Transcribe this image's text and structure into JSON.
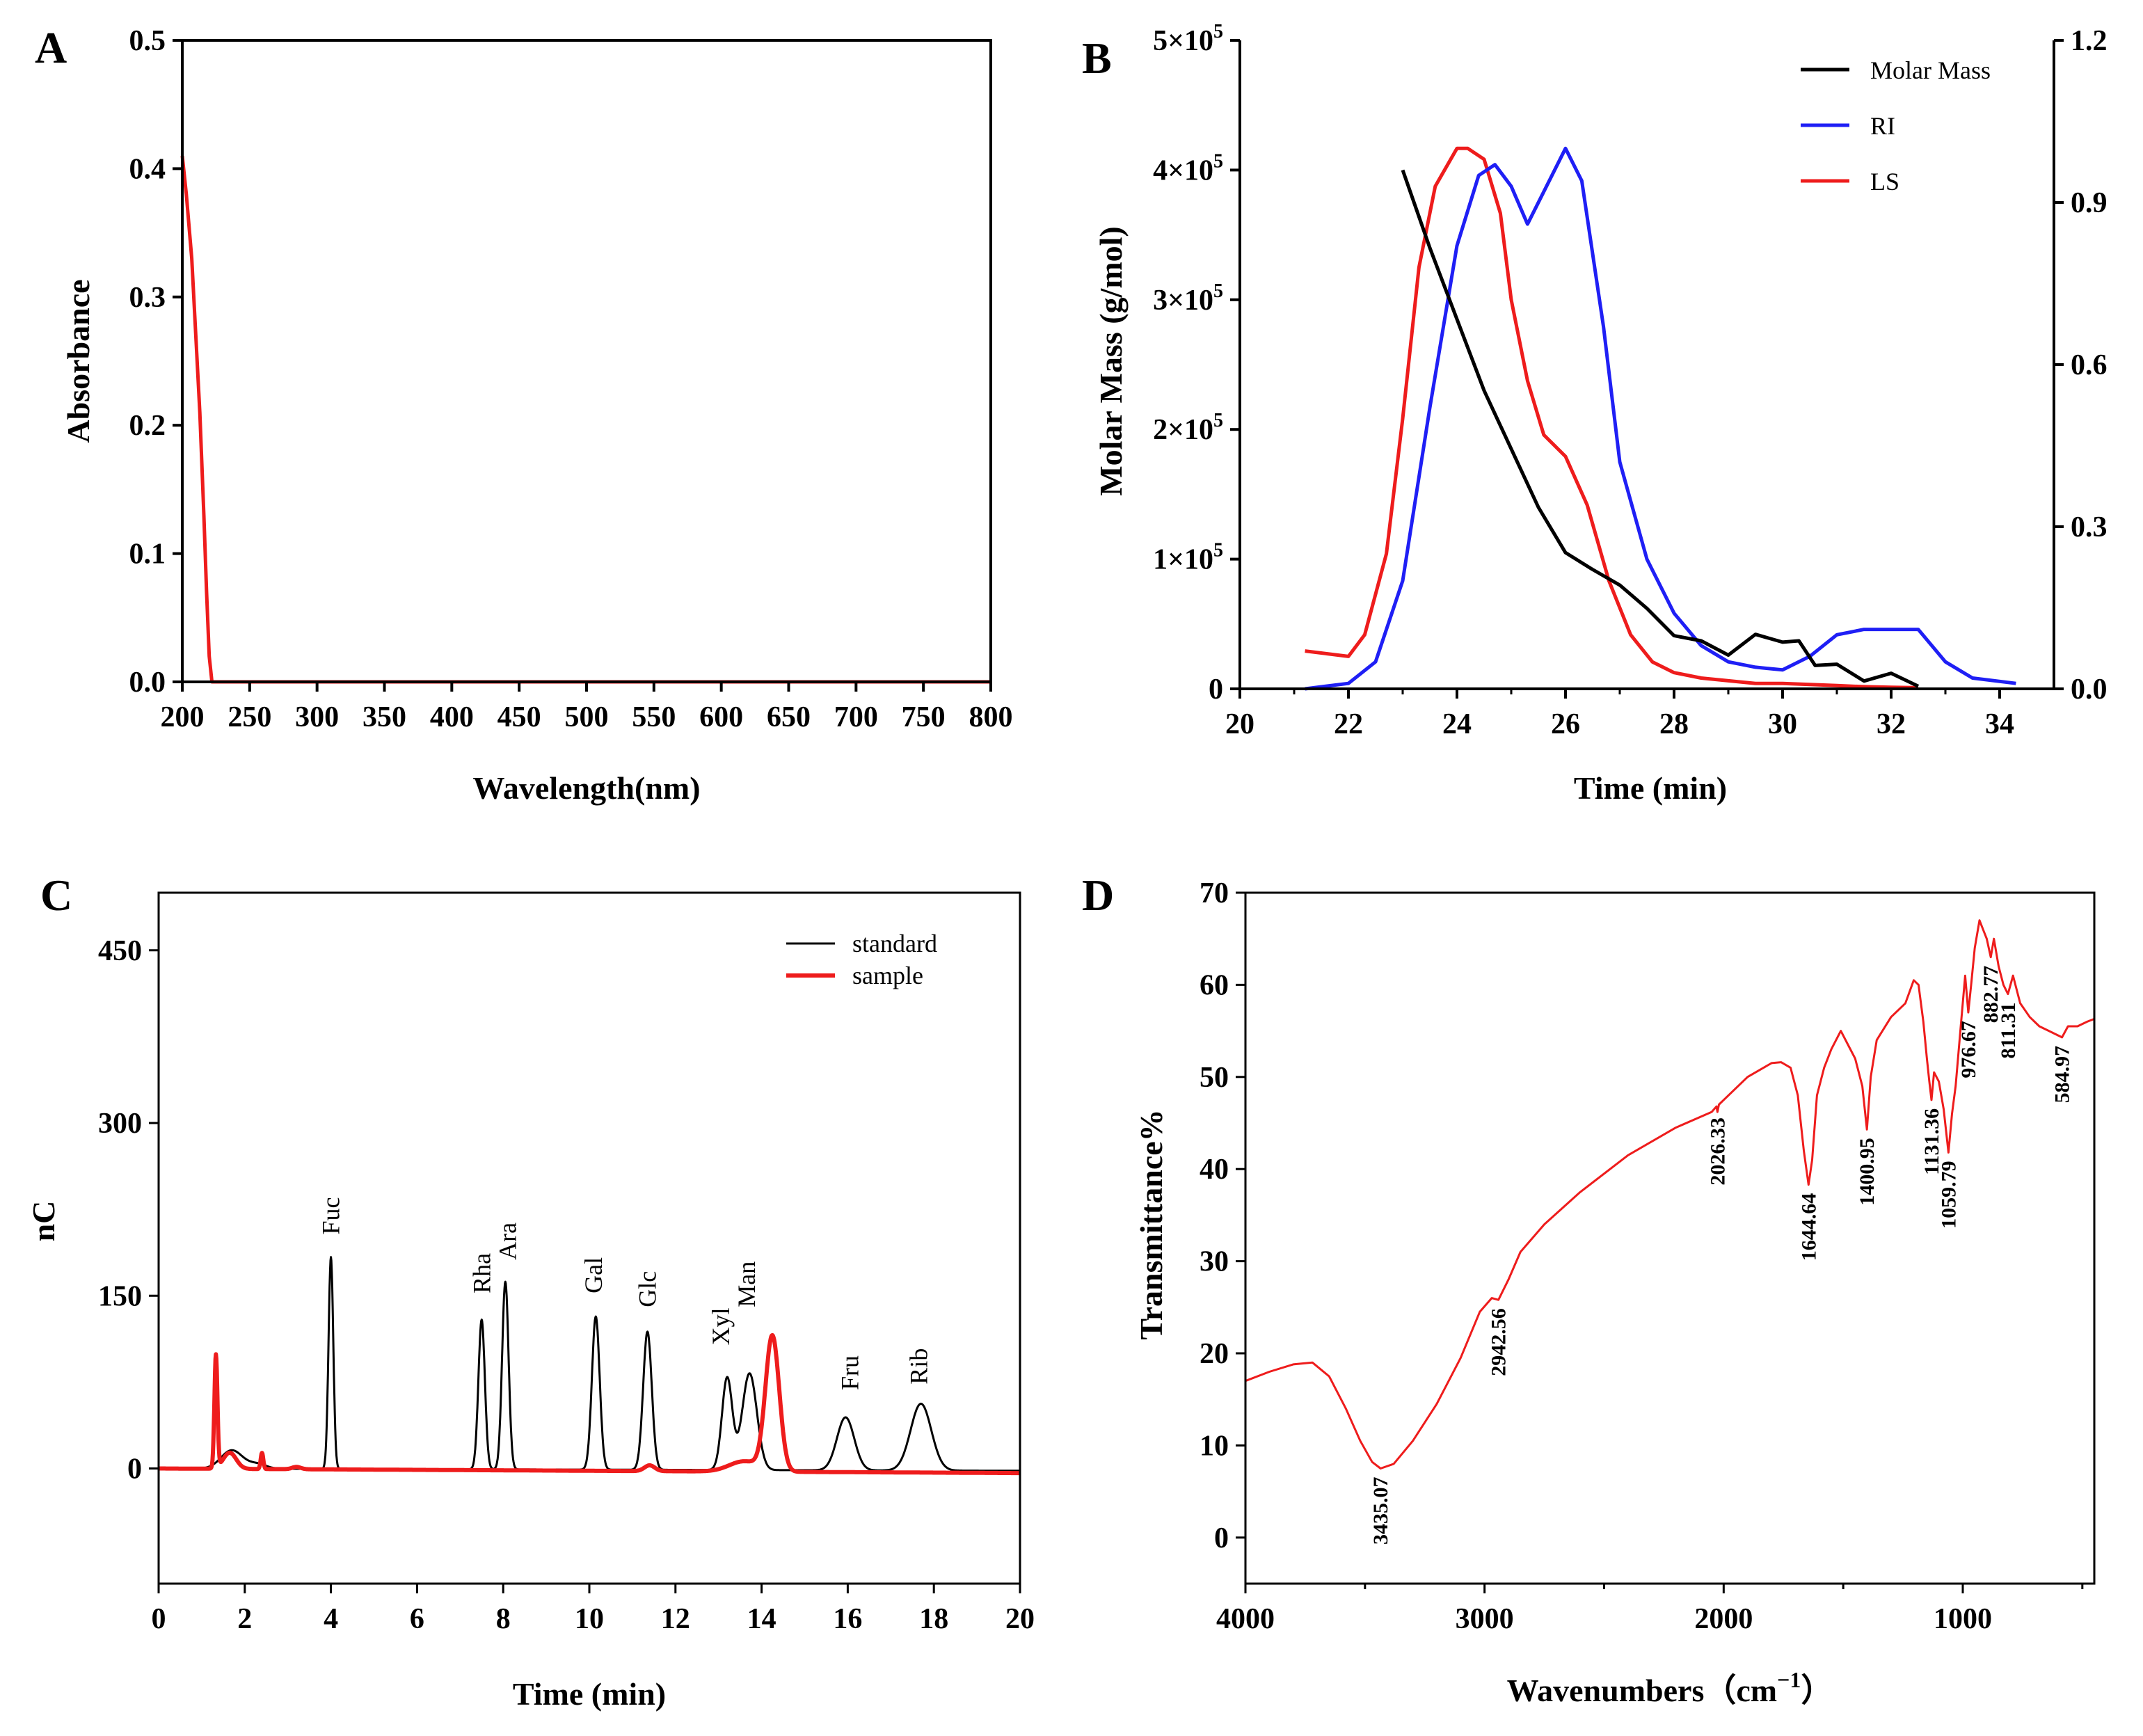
{
  "figure": {
    "colors": {
      "black": "#000000",
      "red": "#ee1c1c",
      "blue": "#1f1ff5"
    }
  },
  "chart_data": [
    {
      "panel": "A",
      "type": "line",
      "xlabel": "Wavelength(nm)",
      "ylabel": "Absorbance",
      "xlim": [
        200,
        800
      ],
      "ylim": [
        0.0,
        0.5
      ],
      "xticks": [
        "200",
        "250",
        "300",
        "350",
        "400",
        "450",
        "500",
        "550",
        "600",
        "650",
        "700",
        "750",
        "800"
      ],
      "yticks": [
        "0.0",
        "0.1",
        "0.2",
        "0.3",
        "0.4",
        "0.5"
      ],
      "series": [
        {
          "name": "absorbance",
          "color": "#ee1c1c",
          "x": [
            200,
            203,
            207,
            210,
            213,
            216,
            218,
            220,
            222,
            225,
            250,
            300,
            400,
            500,
            600,
            700,
            800
          ],
          "y": [
            0.41,
            0.38,
            0.33,
            0.27,
            0.21,
            0.13,
            0.07,
            0.02,
            0.0,
            0.0,
            0.0,
            0.0,
            0.0,
            0.0,
            0.0,
            0.0,
            0.0
          ]
        }
      ]
    },
    {
      "panel": "B",
      "type": "line",
      "xlabel": "Time (min)",
      "ylabel": "Molar Mass (g/mol)",
      "xlim": [
        20,
        35
      ],
      "ylim": [
        0,
        500000
      ],
      "y2lim": [
        0,
        1.2
      ],
      "xticks": [
        "20",
        "22",
        "24",
        "26",
        "28",
        "30",
        "32",
        "34"
      ],
      "yticks": [
        {
          "base": "0",
          "exp": ""
        },
        {
          "base": "1×10",
          "exp": "5"
        },
        {
          "base": "2×10",
          "exp": "5"
        },
        {
          "base": "3×10",
          "exp": "5"
        },
        {
          "base": "4×10",
          "exp": "5"
        },
        {
          "base": "5×10",
          "exp": "5"
        }
      ],
      "y2ticks": [
        "0.0",
        "0.3",
        "0.6",
        "0.9",
        "1.2"
      ],
      "legend": [
        "Molar Mass",
        "RI",
        "LS"
      ],
      "series": [
        {
          "name": "Molar Mass",
          "axis": "left",
          "color": "#000000",
          "x": [
            23.0,
            23.5,
            24.0,
            24.5,
            25.0,
            25.5,
            26.0,
            26.5,
            27.0,
            27.5,
            28.0,
            28.5,
            29.0,
            29.5,
            30.0,
            30.3,
            30.6,
            31.0,
            31.5,
            32.0,
            32.5
          ],
          "y": [
            400000,
            340000,
            285000,
            230000,
            185000,
            140000,
            105000,
            92000,
            80000,
            62000,
            45000,
            33000,
            30000,
            38000,
            40000,
            33000,
            22000,
            15000,
            10000,
            8000,
            6000
          ]
        },
        {
          "name": "RI",
          "axis": "right",
          "color": "#1f1ff5",
          "x": [
            21.2,
            22.0,
            22.5,
            23.0,
            23.5,
            24.0,
            24.4,
            24.7,
            25.0,
            25.3,
            25.6,
            26.0,
            26.3,
            26.7,
            27.0,
            27.5,
            28.0,
            28.5,
            29.0,
            29.5,
            30.0,
            30.5,
            31.0,
            31.5,
            32.0,
            32.5,
            33.0,
            33.5,
            34.3
          ],
          "y": [
            0.0,
            0.01,
            0.05,
            0.2,
            0.52,
            0.82,
            0.95,
            0.97,
            0.93,
            0.86,
            0.92,
            1.0,
            0.94,
            0.67,
            0.42,
            0.24,
            0.14,
            0.08,
            0.05,
            0.04,
            0.035,
            0.06,
            0.1,
            0.11,
            0.11,
            0.11,
            0.05,
            0.02,
            0.01
          ]
        },
        {
          "name": "LS",
          "axis": "right",
          "color": "#ee1c1c",
          "x": [
            21.2,
            21.6,
            22.0,
            22.3,
            22.7,
            23.0,
            23.3,
            23.6,
            24.0,
            24.2,
            24.5,
            24.8,
            25.0,
            25.3,
            25.6,
            26.0,
            26.4,
            26.8,
            27.2,
            27.6,
            28.0,
            28.5,
            29.0,
            29.5,
            30.0,
            30.5,
            31.0,
            31.5,
            32.0,
            32.5
          ],
          "y": [
            0.07,
            0.065,
            0.06,
            0.1,
            0.25,
            0.5,
            0.78,
            0.93,
            1.0,
            1.0,
            0.98,
            0.88,
            0.72,
            0.57,
            0.47,
            0.43,
            0.34,
            0.2,
            0.1,
            0.05,
            0.03,
            0.02,
            0.015,
            0.01,
            0.01,
            0.008,
            0.006,
            0.004,
            0.003,
            0.002
          ]
        }
      ]
    },
    {
      "panel": "C",
      "type": "line",
      "xlabel": "Time (min)",
      "ylabel": "nC",
      "xlim": [
        0,
        20
      ],
      "ylim": [
        -100,
        500
      ],
      "xticks": [
        "0",
        "2",
        "4",
        "6",
        "8",
        "10",
        "12",
        "14",
        "16",
        "18",
        "20"
      ],
      "yticks": [
        "0",
        "150",
        "300",
        "450"
      ],
      "legend": [
        "standard",
        "sample"
      ],
      "peak_labels": [
        {
          "label": "Fuc",
          "x": 4.0,
          "y": 203
        },
        {
          "label": "Rha",
          "x": 7.5,
          "y": 152
        },
        {
          "label": "Ara",
          "x": 8.1,
          "y": 181
        },
        {
          "label": "Gal",
          "x": 10.1,
          "y": 152
        },
        {
          "label": "Glc",
          "x": 11.35,
          "y": 140
        },
        {
          "label": "Xyl",
          "x": 13.05,
          "y": 107
        },
        {
          "label": "Man",
          "x": 13.65,
          "y": 140
        },
        {
          "label": "Fru",
          "x": 16.05,
          "y": 68
        },
        {
          "label": "Rib",
          "x": 17.65,
          "y": 73
        }
      ],
      "series": [
        {
          "name": "standard",
          "color": "#000000",
          "peaks": [
            {
              "c": 1.7,
              "h": 16,
              "w": 0.25
            },
            {
              "c": 2.3,
              "h": 4,
              "w": 0.2
            },
            {
              "c": 4.0,
              "h": 184,
              "w": 0.055
            },
            {
              "c": 7.5,
              "h": 130,
              "w": 0.075
            },
            {
              "c": 8.05,
              "h": 163,
              "w": 0.075
            },
            {
              "c": 10.15,
              "h": 133,
              "w": 0.09
            },
            {
              "c": 11.35,
              "h": 120,
              "w": 0.1
            },
            {
              "c": 13.2,
              "h": 80,
              "w": 0.12
            },
            {
              "c": 13.72,
              "h": 84,
              "w": 0.17
            },
            {
              "c": 15.95,
              "h": 46,
              "w": 0.2
            },
            {
              "c": 17.7,
              "h": 58,
              "w": 0.24
            }
          ],
          "baseline_start": 0,
          "baseline_end": -2
        },
        {
          "name": "sample",
          "color": "#ee1c1c",
          "peaks": [
            {
              "c": 1.33,
              "h": 98,
              "w": 0.035
            },
            {
              "c": 1.65,
              "h": 14,
              "w": 0.15
            },
            {
              "c": 2.4,
              "h": 14,
              "w": 0.03
            },
            {
              "c": 3.2,
              "h": 2,
              "w": 0.1
            },
            {
              "c": 11.4,
              "h": 5,
              "w": 0.12
            },
            {
              "c": 13.6,
              "h": 9,
              "w": 0.35
            },
            {
              "c": 14.25,
              "h": 117,
              "w": 0.16
            }
          ],
          "baseline_start": 0,
          "baseline_end": -4
        }
      ]
    },
    {
      "panel": "D",
      "type": "line",
      "xlabel": "Wavenumbers（cm",
      "xlabel_sup": "−1",
      "xlabel_close": "）",
      "ylabel": "Transmittance%",
      "xlim": [
        4000,
        450
      ],
      "ylim": [
        -5,
        70
      ],
      "xticks": [
        "4000",
        "3000",
        "2000",
        "1000"
      ],
      "yticks": [
        "0",
        "10",
        "20",
        "30",
        "40",
        "50",
        "60",
        "70"
      ],
      "peak_labels": [
        {
          "label": "3435.07",
          "x": 3435,
          "y": 7.5
        },
        {
          "label": "2942.56",
          "x": 2942,
          "y": 25.8
        },
        {
          "label": "2026.33",
          "x": 2026,
          "y": 46.5
        },
        {
          "label": "1644.64",
          "x": 1645,
          "y": 38.3
        },
        {
          "label": "1400.95",
          "x": 1401,
          "y": 44.3
        },
        {
          "label": "1131.36",
          "x": 1131,
          "y": 47.5
        },
        {
          "label": "1059.79",
          "x": 1060,
          "y": 41.8
        },
        {
          "label": "976.67",
          "x": 977,
          "y": 57
        },
        {
          "label": "882.77",
          "x": 883,
          "y": 63
        },
        {
          "label": "811.31",
          "x": 811,
          "y": 59
        },
        {
          "label": "584.97",
          "x": 585,
          "y": 54.3
        }
      ],
      "series": [
        {
          "name": "spectrum",
          "color": "#ee1c1c",
          "x": [
            4000,
            3900,
            3800,
            3720,
            3650,
            3580,
            3520,
            3470,
            3435,
            3380,
            3300,
            3200,
            3100,
            3020,
            2970,
            2942,
            2900,
            2850,
            2750,
            2600,
            2400,
            2200,
            2050,
            2030,
            2026,
            2020,
            2000,
            1900,
            1800,
            1760,
            1720,
            1690,
            1665,
            1645,
            1630,
            1610,
            1580,
            1550,
            1510,
            1480,
            1450,
            1420,
            1401,
            1385,
            1360,
            1300,
            1240,
            1205,
            1185,
            1165,
            1150,
            1140,
            1131,
            1120,
            1100,
            1080,
            1060,
            1045,
            1030,
            1010,
            990,
            977,
            965,
            950,
            930,
            915,
            900,
            883,
            870,
            850,
            830,
            811,
            790,
            760,
            720,
            680,
            640,
            585,
            560,
            520,
            480,
            450
          ],
          "y": [
            17,
            18,
            18.8,
            19,
            17.5,
            14,
            10.5,
            8.2,
            7.5,
            8,
            10.5,
            14.5,
            19.5,
            24.5,
            26,
            25.8,
            28,
            31,
            34,
            37.5,
            41.5,
            44.5,
            46.2,
            46.8,
            46.2,
            47,
            47.5,
            50,
            51.5,
            51.6,
            51,
            48,
            42,
            38.3,
            41,
            48,
            51,
            53,
            55,
            53.5,
            52,
            49,
            44.3,
            50,
            54,
            56.5,
            58,
            60.5,
            60,
            56,
            52,
            49.5,
            47.5,
            50.5,
            49.5,
            46.5,
            41.8,
            46,
            49,
            55,
            61,
            57,
            60,
            64,
            67,
            66,
            65,
            63,
            65,
            62,
            60,
            59,
            61,
            58,
            56.5,
            55.5,
            55,
            54.3,
            55.5,
            55.5,
            56,
            56.3
          ]
        }
      ]
    }
  ]
}
